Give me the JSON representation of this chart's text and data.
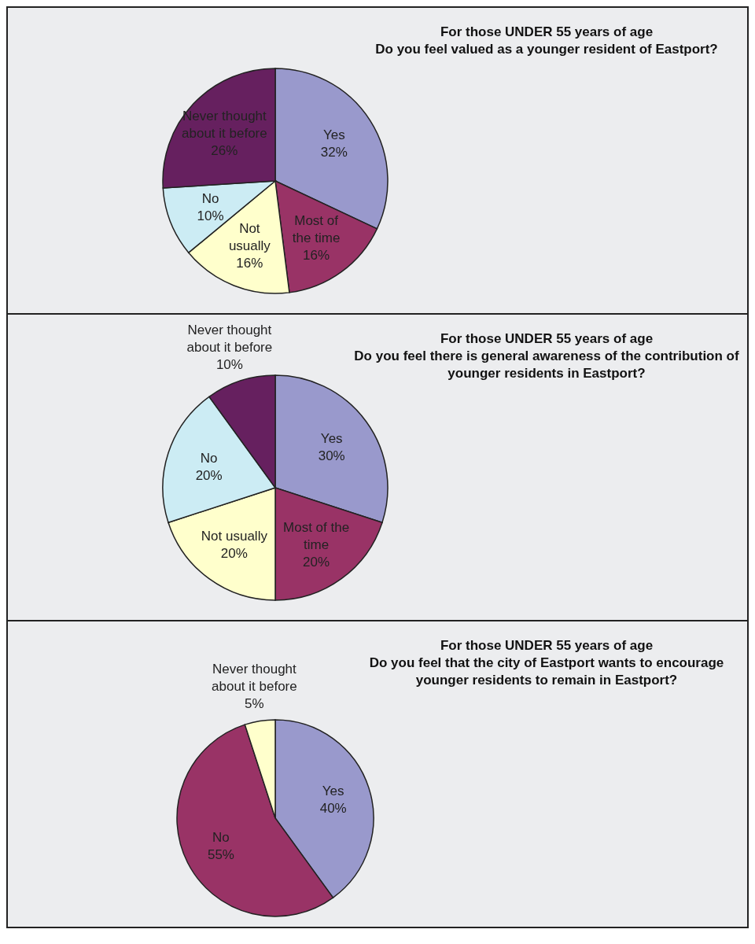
{
  "chart_data": [
    {
      "type": "pie",
      "title": "For those UNDER 55 years of age",
      "subtitle": "Do you feel valued as a younger resident of Eastport?",
      "categories": [
        "Yes",
        "Most of the time",
        "Not usually",
        "No",
        "Never thought about it before"
      ],
      "values": [
        32,
        16,
        16,
        10,
        26
      ],
      "value_labels": [
        "32%",
        "16%",
        "16%",
        "10%",
        "26%"
      ],
      "colors": [
        "#9999cc",
        "#993366",
        "#ffffcc",
        "#ccecf4",
        "#66205f"
      ]
    },
    {
      "type": "pie",
      "title": "For those UNDER 55 years of age",
      "subtitle": "Do you feel there is general awareness of the contribution of younger residents in Eastport?",
      "categories": [
        "Yes",
        "Most of the time",
        "Not usually",
        "No",
        "Never thought about it before"
      ],
      "values": [
        30,
        20,
        20,
        20,
        10
      ],
      "value_labels": [
        "30%",
        "20%",
        "20%",
        "20%",
        "10%"
      ],
      "colors": [
        "#9999cc",
        "#993366",
        "#ffffcc",
        "#ccecf4",
        "#66205f"
      ]
    },
    {
      "type": "pie",
      "title": "For those UNDER 55 years of age",
      "subtitle": "Do you feel that the city of Eastport wants to encourage younger residents to remain in Eastport?",
      "categories": [
        "Yes",
        "No",
        "Never thought about it before"
      ],
      "values": [
        40,
        55,
        5
      ],
      "value_labels": [
        "40%",
        "55%",
        "5%"
      ],
      "colors": [
        "#9999cc",
        "#993366",
        "#ffffcc"
      ]
    }
  ]
}
